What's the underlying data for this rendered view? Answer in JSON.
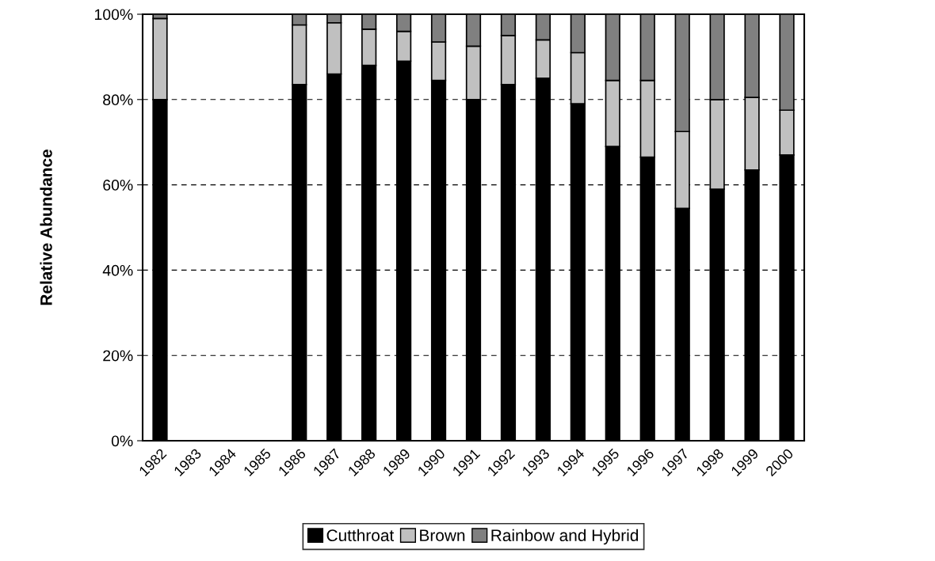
{
  "chart_data": {
    "type": "bar",
    "stacked": true,
    "ylabel": "Relative Abundance",
    "categories": [
      "1982",
      "1983",
      "1984",
      "1985",
      "1986",
      "1987",
      "1988",
      "1989",
      "1990",
      "1991",
      "1992",
      "1993",
      "1994",
      "1995",
      "1996",
      "1997",
      "1998",
      "1999",
      "2000"
    ],
    "series": [
      {
        "name": "Cutthroat",
        "color": "#000000",
        "values": [
          80,
          null,
          null,
          null,
          83.5,
          86,
          88,
          89,
          84.5,
          80,
          83.5,
          85,
          79,
          69,
          66.5,
          54.5,
          59,
          63.5,
          67
        ]
      },
      {
        "name": "Brown",
        "color": "#c0c0c0",
        "values": [
          19,
          null,
          null,
          null,
          14,
          12,
          8.5,
          7,
          9,
          12.5,
          11.5,
          9,
          12,
          15.5,
          18,
          18,
          21,
          17,
          10.5
        ]
      },
      {
        "name": "Rainbow and Hybrid",
        "color": "#808080",
        "values": [
          1,
          null,
          null,
          null,
          2.5,
          2,
          3.5,
          4,
          6.5,
          7.5,
          5,
          6,
          9,
          15.5,
          15.5,
          27.5,
          20,
          19.5,
          22.5
        ]
      }
    ],
    "ylim": [
      0,
      100
    ],
    "yticks": [
      {
        "value": 0,
        "label": "0%"
      },
      {
        "value": 20,
        "label": "20%"
      },
      {
        "value": 40,
        "label": "40%"
      },
      {
        "value": 60,
        "label": "60%"
      },
      {
        "value": 80,
        "label": "80%"
      },
      {
        "value": 100,
        "label": "100%"
      }
    ],
    "grid": "y",
    "legend": "bottom"
  }
}
